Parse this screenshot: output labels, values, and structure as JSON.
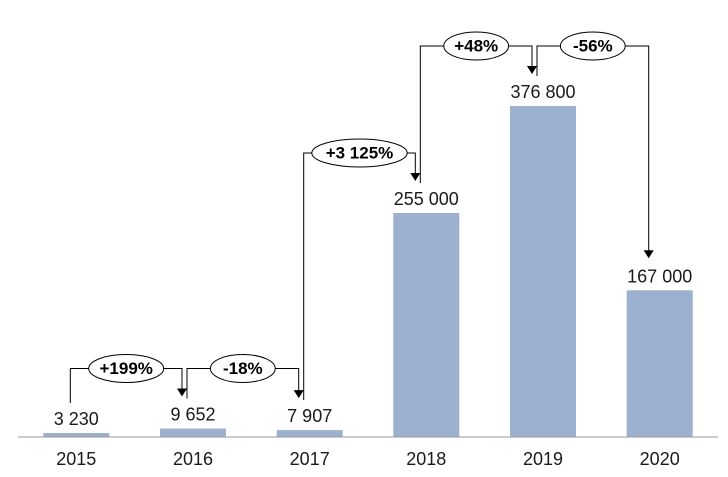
{
  "chart_data": {
    "type": "bar",
    "categories": [
      "2015",
      "2016",
      "2017",
      "2018",
      "2019",
      "2020"
    ],
    "values": [
      3230,
      9652,
      7907,
      255000,
      376800,
      167000
    ],
    "value_labels": [
      "3 230",
      "9 652",
      "7 907",
      "255 000",
      "376 800",
      "167 000"
    ],
    "title": "",
    "xlabel": "",
    "ylabel": "",
    "ylim": [
      0,
      376800
    ],
    "grid": false,
    "legend": "none",
    "bar_color": "#9cb0cf",
    "annotations": [
      {
        "from": "2015",
        "to": "2016",
        "label": "+199%"
      },
      {
        "from": "2016",
        "to": "2017",
        "label": "-18%"
      },
      {
        "from": "2017",
        "to": "2018",
        "label": "+3 125%"
      },
      {
        "from": "2018",
        "to": "2019",
        "label": "+48%"
      },
      {
        "from": "2019",
        "to": "2020",
        "label": "-56%"
      }
    ]
  }
}
